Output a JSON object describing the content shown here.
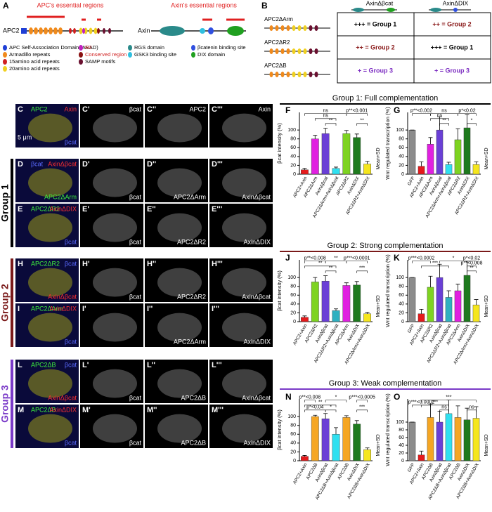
{
  "panel_a": {
    "letter": "A",
    "apc_name": "APC2",
    "apc_title": "APC's essential regions",
    "axin_name": "Axin",
    "axin_title": "Axin's essential regions",
    "legend": [
      {
        "label": "APC Self-Association Domain (ASAD)",
        "color": "#1f3fd6"
      },
      {
        "label": "Armadillo repeats",
        "color": "#f08a1c"
      },
      {
        "label": "15amino acid repeats",
        "color": "#d02020"
      },
      {
        "label": "20amino acid repeats",
        "color": "#f0d020"
      },
      {
        "label": "R2",
        "color": "#c020c0"
      },
      {
        "label": "Conserved region B",
        "color": "#8a1010"
      },
      {
        "label": "SAMP motifs",
        "color": "#6a1030"
      },
      {
        "label": "RGS domain",
        "color": "#2a8a8a"
      },
      {
        "label": "GSK3 binding site",
        "color": "#30c0e0"
      },
      {
        "label": "βcatenin binding site",
        "color": "#3050e0"
      },
      {
        "label": "DIX domain",
        "color": "#20a020"
      }
    ]
  },
  "panel_b": {
    "letter": "B",
    "columns": [
      "AxinΔβcat",
      "AxinΔDIX"
    ],
    "rows": [
      {
        "label": "APC2ΔArm",
        "cells": [
          {
            "text": "+++ = Group 1",
            "color": "#000000"
          },
          {
            "text": "++ = Group 2",
            "color": "#8a1a1a"
          }
        ]
      },
      {
        "label": "APC2ΔR2",
        "cells": [
          {
            "text": "++ = Group 2",
            "color": "#8a1a1a"
          },
          {
            "text": "+++ = Group 1",
            "color": "#000000"
          }
        ]
      },
      {
        "label": "APC2ΔB",
        "cells": [
          {
            "text": "+ = Group 3",
            "color": "#7a2ac0"
          },
          {
            "text": "+ = Group 3",
            "color": "#7a2ac0"
          }
        ]
      }
    ]
  },
  "groups": [
    {
      "label": "Group 1",
      "color": "#000000"
    },
    {
      "label": "Group 2",
      "color": "#7a1a1a"
    },
    {
      "label": "Group 3",
      "color": "#7a3ac8"
    }
  ],
  "micrographs": [
    {
      "label": "C",
      "texts": [
        {
          "text": "APC2",
          "color": "#3ef03e"
        },
        {
          "text": "Axin",
          "color": "#ff3030"
        },
        {
          "text": "βcat",
          "color": "#5a6aff"
        },
        {
          "text": "5 μm",
          "color": "#ffffff"
        }
      ]
    },
    {
      "label": "C'",
      "texts": [
        {
          "text": "βcat",
          "color": "#ffffff"
        }
      ]
    },
    {
      "label": "C''",
      "texts": [
        {
          "text": "APC2",
          "color": "#ffffff"
        }
      ]
    },
    {
      "label": "C'''",
      "texts": [
        {
          "text": "Axin",
          "color": "#ffffff"
        }
      ]
    },
    {
      "label": "D",
      "texts": [
        {
          "text": "βcat",
          "color": "#5a6aff"
        },
        {
          "text": "AxinΔβcat",
          "color": "#ff3030"
        },
        {
          "text": "APC2ΔArm",
          "color": "#3ef03e"
        }
      ]
    },
    {
      "label": "D'",
      "texts": [
        {
          "text": "βcat",
          "color": "#ffffff"
        }
      ]
    },
    {
      "label": "D''",
      "texts": [
        {
          "text": "APC2ΔArm",
          "color": "#ffffff"
        }
      ]
    },
    {
      "label": "D'''",
      "texts": [
        {
          "text": "AxinΔβcat",
          "color": "#ffffff"
        }
      ]
    },
    {
      "label": "E",
      "texts": [
        {
          "text": "APC2ΔR2",
          "color": "#3ef03e"
        },
        {
          "text": "AxinΔDIX",
          "color": "#ff3030"
        },
        {
          "text": "βcat",
          "color": "#5a6aff"
        }
      ]
    },
    {
      "label": "E'",
      "texts": [
        {
          "text": "βcat",
          "color": "#ffffff"
        }
      ]
    },
    {
      "label": "E''",
      "texts": [
        {
          "text": "APC2ΔR2",
          "color": "#ffffff"
        }
      ]
    },
    {
      "label": "E'''",
      "texts": [
        {
          "text": "AxinΔDIX",
          "color": "#ffffff"
        }
      ]
    },
    {
      "label": "H",
      "texts": [
        {
          "text": "APC2ΔR2",
          "color": "#3ef03e"
        },
        {
          "text": "βcat",
          "color": "#5a6aff"
        },
        {
          "text": "AxinΔβcat",
          "color": "#ff3030"
        }
      ]
    },
    {
      "label": "H'",
      "texts": [
        {
          "text": "βcat",
          "color": "#ffffff"
        }
      ]
    },
    {
      "label": "H''",
      "texts": [
        {
          "text": "APC2ΔR2",
          "color": "#ffffff"
        }
      ]
    },
    {
      "label": "H'''",
      "texts": [
        {
          "text": "AxinΔβcat",
          "color": "#ffffff"
        }
      ]
    },
    {
      "label": "I",
      "texts": [
        {
          "text": "APC2ΔArm",
          "color": "#3ef03e"
        },
        {
          "text": "AxinΔDIX",
          "color": "#ff3030"
        },
        {
          "text": "βcat",
          "color": "#5a6aff"
        }
      ]
    },
    {
      "label": "I'",
      "texts": []
    },
    {
      "label": "I''",
      "texts": [
        {
          "text": "APC2ΔArm",
          "color": "#ffffff"
        }
      ]
    },
    {
      "label": "I'''",
      "texts": [
        {
          "text": "AxinΔDIX",
          "color": "#ffffff"
        }
      ]
    },
    {
      "label": "L",
      "texts": [
        {
          "text": "APC2ΔB",
          "color": "#3ef03e"
        },
        {
          "text": "βcat",
          "color": "#5a6aff"
        },
        {
          "text": "AxinΔβcat",
          "color": "#ff3030"
        }
      ]
    },
    {
      "label": "L'",
      "texts": [
        {
          "text": "βcat",
          "color": "#ffffff"
        }
      ]
    },
    {
      "label": "L''",
      "texts": [
        {
          "text": "APC2ΔB",
          "color": "#ffffff"
        }
      ]
    },
    {
      "label": "L'''",
      "texts": [
        {
          "text": "AxinΔβcat",
          "color": "#ffffff"
        }
      ]
    },
    {
      "label": "M",
      "texts": [
        {
          "text": "APC2ΔB",
          "color": "#3ef03e"
        },
        {
          "text": "AxinΔDIX",
          "color": "#ff3030"
        },
        {
          "text": "βcat",
          "color": "#5a6aff"
        }
      ]
    },
    {
      "label": "M'",
      "texts": [
        {
          "text": "βcat",
          "color": "#ffffff"
        }
      ]
    },
    {
      "label": "M''",
      "texts": [
        {
          "text": "APC2ΔB",
          "color": "#ffffff"
        }
      ]
    },
    {
      "label": "M'''",
      "texts": [
        {
          "text": "AxinΔDIX",
          "color": "#ffffff"
        }
      ]
    }
  ],
  "chart_headers": [
    {
      "text": "Group 1: Full complementation",
      "color": "#000000"
    },
    {
      "text": "Group 2: Strong complementation",
      "color": "#7a1a1a"
    },
    {
      "text": "Group 3: Weak complementation",
      "color": "#7a3ac8"
    }
  ],
  "chart_data": [
    {
      "type": "bar",
      "letter": "F",
      "ylabel": "βcat intensity (%)",
      "note": "Mean+SD",
      "ylim": [
        0,
        140
      ],
      "yticks": [
        0,
        20,
        40,
        60,
        80,
        100
      ],
      "categories": [
        "APC2+Axin",
        "APC2ΔArm",
        "AxinΔβcat",
        "APC2ΔArm+AxinΔβcat",
        "APC2ΔR2",
        "AxinΔDIX",
        "APC2ΔR2+AxinΔDIX"
      ],
      "values": [
        10,
        80,
        92,
        13,
        92,
        83,
        23
      ],
      "errors": [
        3,
        8,
        12,
        3,
        7,
        8,
        6
      ],
      "colors": [
        "#e41a1c",
        "#e020e0",
        "#6a3fd6",
        "#30e0f0",
        "#7ed321",
        "#1e7a1e",
        "#f5e61e"
      ],
      "annotations": [
        "ns",
        "p**<0.001",
        "ns",
        "**",
        "**"
      ]
    },
    {
      "type": "bar",
      "letter": "G",
      "ylabel": "Wnt regulated transcription (%)",
      "note": "Mean+SD",
      "ylim": [
        0,
        140
      ],
      "yticks": [
        0,
        20,
        40,
        60,
        80,
        100
      ],
      "categories": [
        "GFP",
        "APC2+Axin",
        "APC2ΔArm",
        "AxinΔβcat",
        "APC2ΔArm+AxinΔβcat",
        "APC2ΔR2",
        "AxinΔDIX",
        "APC2ΔR2+AxinΔDIX"
      ],
      "values": [
        100,
        18,
        68,
        100,
        22,
        78,
        105,
        22
      ],
      "errors": [
        0,
        10,
        15,
        30,
        5,
        25,
        30,
        6
      ],
      "colors": [
        "#8c8c8c",
        "#e41a1c",
        "#e020e0",
        "#6a3fd6",
        "#30e0f0",
        "#7ed321",
        "#1e7a1e",
        "#f5e61e"
      ],
      "annotations": [
        "p**<0.002",
        "ns",
        "p*<0.02",
        "ns",
        "**",
        "*"
      ]
    },
    {
      "type": "bar",
      "letter": "J",
      "ylabel": "βcat intensity (%)",
      "note": "Mean+SD",
      "ylim": [
        0,
        140
      ],
      "yticks": [
        0,
        20,
        40,
        60,
        80,
        100
      ],
      "categories": [
        "APC2+Axin",
        "APC2ΔR2",
        "AxinΔβcat",
        "APC2ΔR2+AxinΔβcat",
        "APC2ΔArm",
        "AxinΔDIX",
        "APC2ΔArm+AxinΔDIX"
      ],
      "values": [
        10,
        90,
        92,
        25,
        82,
        83,
        18
      ],
      "errors": [
        3,
        10,
        12,
        4,
        6,
        8,
        3
      ],
      "colors": [
        "#e41a1c",
        "#7ed321",
        "#6a3fd6",
        "#2fb0c0",
        "#e020e0",
        "#1e7a1e",
        "#f5e61e"
      ],
      "annotations": [
        "p**<0.008",
        "**",
        "p***<0.0001",
        "**",
        "**",
        "***"
      ]
    },
    {
      "type": "bar",
      "letter": "K",
      "ylabel": "Wnt regulated transcription (%)",
      "note": "Mean+SD",
      "ylim": [
        0,
        140
      ],
      "yticks": [
        0,
        20,
        40,
        60,
        80,
        100
      ],
      "categories": [
        "GFP",
        "APC2+Axin",
        "APC2ΔR2",
        "AxinΔβcat",
        "APC2ΔR2+AxinΔβcat",
        "APC2ΔArm",
        "AxinΔDIX",
        "APC2ΔArm+AxinΔDIX"
      ],
      "values": [
        100,
        18,
        78,
        100,
        55,
        70,
        105,
        38
      ],
      "errors": [
        0,
        10,
        25,
        30,
        15,
        15,
        32,
        12
      ],
      "colors": [
        "#8c8c8c",
        "#e41a1c",
        "#7ed321",
        "#6a3fd6",
        "#2fb0c0",
        "#e020e0",
        "#1e7a1e",
        "#f5e61e"
      ],
      "annotations": [
        "p***<0.0002",
        "*",
        "p*<0.02",
        "***",
        "p**<0.008",
        "**"
      ]
    },
    {
      "type": "bar",
      "letter": "N",
      "ylabel": "βcat intensity (%)",
      "note": "Mean+SD",
      "ylim": [
        0,
        140
      ],
      "yticks": [
        0,
        20,
        40,
        60,
        80,
        100
      ],
      "categories": [
        "APC2+Axin",
        "APC2ΔB",
        "AxinΔβcat",
        "APC2ΔB+AxinΔβcat",
        "APC2ΔB",
        "AxinΔDIX",
        "APC2ΔB+AxinΔDIX"
      ],
      "values": [
        10,
        100,
        95,
        60,
        98,
        83,
        25
      ],
      "errors": [
        2,
        3,
        12,
        15,
        4,
        8,
        4
      ],
      "colors": [
        "#e41a1c",
        "#f5a623",
        "#6a3fd6",
        "#30e0f0",
        "#f5a623",
        "#1e7a1e",
        "#f5e61e"
      ],
      "annotations": [
        "p**<0.008",
        "*",
        "p***<0.0005",
        "**",
        "p*<0.04",
        "*",
        "***"
      ]
    },
    {
      "type": "bar",
      "letter": "O",
      "ylabel": "Wnt regulated transcription (%)",
      "note": "Mean+SD",
      "ylim": [
        0,
        160
      ],
      "yticks": [
        0,
        20,
        40,
        60,
        80,
        100
      ],
      "categories": [
        "GFP",
        "APC2+Axin",
        "APC2ΔB",
        "AxinΔβcat",
        "APC2ΔB+AxinΔβcat",
        "APC2ΔB",
        "AxinΔDIX",
        "APC2ΔB+AxinΔDIX"
      ],
      "values": [
        100,
        15,
        112,
        100,
        122,
        112,
        106,
        110
      ],
      "errors": [
        0,
        10,
        35,
        28,
        35,
        30,
        30,
        30
      ],
      "colors": [
        "#8c8c8c",
        "#e41a1c",
        "#f5a623",
        "#6a3fd6",
        "#30e0f0",
        "#f5a623",
        "#1e7a1e",
        "#f5e61e"
      ],
      "annotations": [
        "p***<0.0002",
        "***",
        "***",
        "ns",
        "ns"
      ]
    }
  ]
}
